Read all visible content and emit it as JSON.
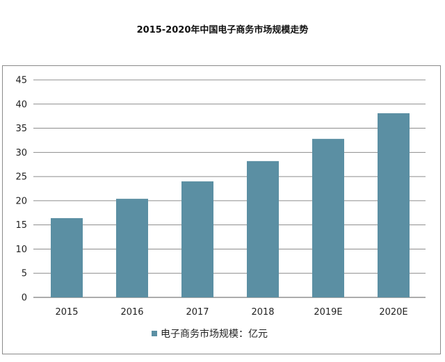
{
  "chart_data": {
    "type": "bar",
    "title": "2015-2020年中国电子商务市场规模走势",
    "categories": [
      "2015",
      "2016",
      "2017",
      "2018",
      "2019E",
      "2020E"
    ],
    "series": [
      {
        "name": "电子商务市场规模：亿元",
        "values": [
          16.4,
          20.4,
          24.0,
          28.2,
          32.8,
          38.1
        ],
        "color": "#5b8fa3"
      }
    ],
    "ylim": [
      0,
      45
    ],
    "yticks": [
      0,
      5,
      10,
      15,
      20,
      25,
      30,
      35,
      40,
      45
    ],
    "grid": true,
    "legend": "bottom"
  }
}
